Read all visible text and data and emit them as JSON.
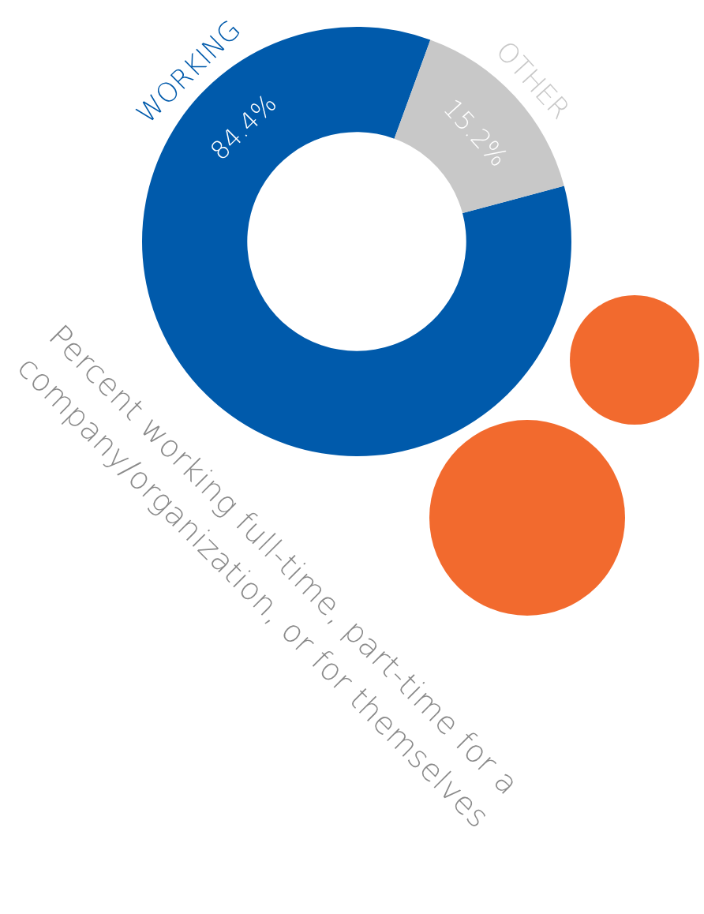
{
  "chart_data": {
    "type": "donut",
    "title": "Percent working full-time, part-time for a company/organization, or for themselves",
    "categories": [
      "WORKING",
      "OTHER"
    ],
    "values": [
      84.4,
      15.2
    ],
    "value_labels": [
      "84.4%",
      "15.2%"
    ],
    "colors": [
      "#005aab",
      "#c8c8c8"
    ]
  }
}
